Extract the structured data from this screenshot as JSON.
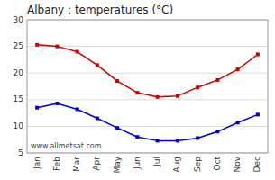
{
  "chart_data": {
    "type": "line",
    "title": "Albany : temperatures (°C)",
    "categories": [
      "Jan",
      "Feb",
      "Mar",
      "Apr",
      "May",
      "Jun",
      "Jul",
      "Aug",
      "Sep",
      "Oct",
      "Nov",
      "Dec"
    ],
    "series": [
      {
        "color": "#cc0000",
        "marker": "square",
        "values": [
          25.3,
          25.0,
          24.0,
          21.5,
          18.5,
          16.3,
          15.5,
          15.7,
          17.3,
          18.7,
          20.7,
          23.5
        ]
      },
      {
        "color": "#0000cc",
        "marker": "square",
        "values": [
          13.5,
          14.3,
          13.2,
          11.5,
          9.7,
          8.0,
          7.3,
          7.3,
          7.8,
          9.0,
          10.7,
          12.2
        ]
      }
    ],
    "ylim": [
      5,
      30
    ],
    "yticks": [
      5,
      10,
      15,
      20,
      25,
      30
    ],
    "grid": true,
    "annotations": [
      "www.allmetsat.com"
    ]
  }
}
